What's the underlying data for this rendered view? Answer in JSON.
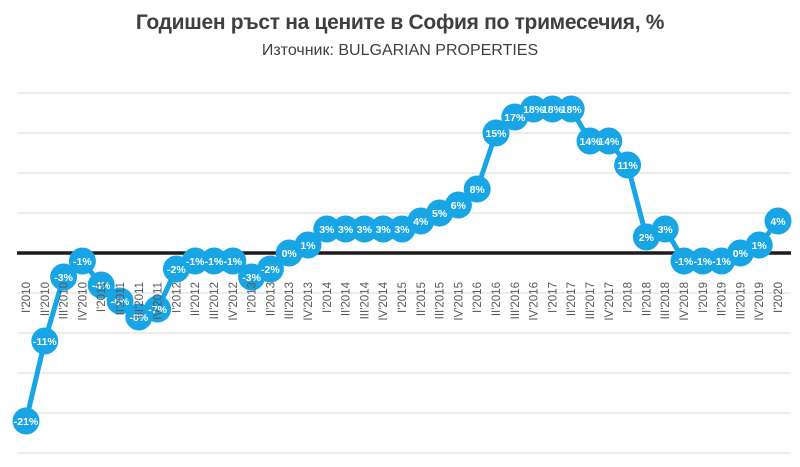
{
  "header": {
    "title": "Годишен ръст на цените в София по тримесечия, %",
    "subtitle": "Източник: BULGARIAN PROPERTIES"
  },
  "chart_data": {
    "type": "line",
    "title": "Годишен ръст на цените в София по тримесечия, %",
    "subtitle": "Източник: BULGARIAN PROPERTIES",
    "categories": [
      "I'2010",
      "II'2010",
      "III'2010",
      "IV'2010",
      "I'2011",
      "II'2011",
      "III'2011",
      "IV'2011",
      "I'2012",
      "II'2012",
      "III'2012",
      "IV'2012",
      "I'2013",
      "II'2013",
      "III'2013",
      "IV'2013",
      "I'2014",
      "II'2014",
      "III'2014",
      "IV'2014",
      "I'2015",
      "II'2015",
      "III'2015",
      "IV'2015",
      "I'2016",
      "II'2016",
      "III'2016",
      "IV'2016",
      "I'2017",
      "II'2017",
      "III'2017",
      "IV'2017",
      "I'2018",
      "II'2018",
      "III'2018",
      "IV'2018",
      "I'2019",
      "II'2019",
      "III'2019",
      "IV'2019",
      "I'2020"
    ],
    "values": [
      -21,
      -11,
      -3,
      -1,
      -4,
      -6,
      -8,
      -7,
      -2,
      -1,
      -1,
      -1,
      -3,
      -2,
      0,
      1,
      3,
      3,
      3,
      3,
      3,
      4,
      5,
      6,
      8,
      15,
      17,
      18,
      18,
      18,
      14,
      14,
      11,
      2,
      3,
      -1,
      -1,
      -1,
      0,
      1,
      4
    ],
    "point_labels": [
      "-21%",
      "-11%",
      "-3%",
      "-1%",
      "-4%",
      "-6%",
      "-8%",
      "-7%",
      "-2%",
      "-1%",
      "-1%",
      "-1%",
      "-3%",
      "-2%",
      "0%",
      "1%",
      "3%",
      "3%",
      "3%",
      "3%",
      "3%",
      "4%",
      "5%",
      "6%",
      "8%",
      "15%",
      "17%",
      "18%",
      "18%",
      "18%",
      "14%",
      "14%",
      "11%",
      "2%",
      "3%",
      "-1%",
      "-1%",
      "-1%",
      "0%",
      "1%",
      "4%"
    ],
    "xlabel": "",
    "ylabel": "",
    "ylim": [
      -25,
      20
    ],
    "gridline_step": 5,
    "grid": "horizontal",
    "legend": "none",
    "marker_style": "filled-circle-with-label",
    "colors": {
      "line": "#17a5e6",
      "marker": "#17a5e6",
      "marker_label": "#ffffff",
      "axis_label": "#595959",
      "gridline": "#d9d9d9",
      "zero_line": "#1c1c1c",
      "title": "#3f3f3f",
      "background": "#ffffff"
    }
  }
}
